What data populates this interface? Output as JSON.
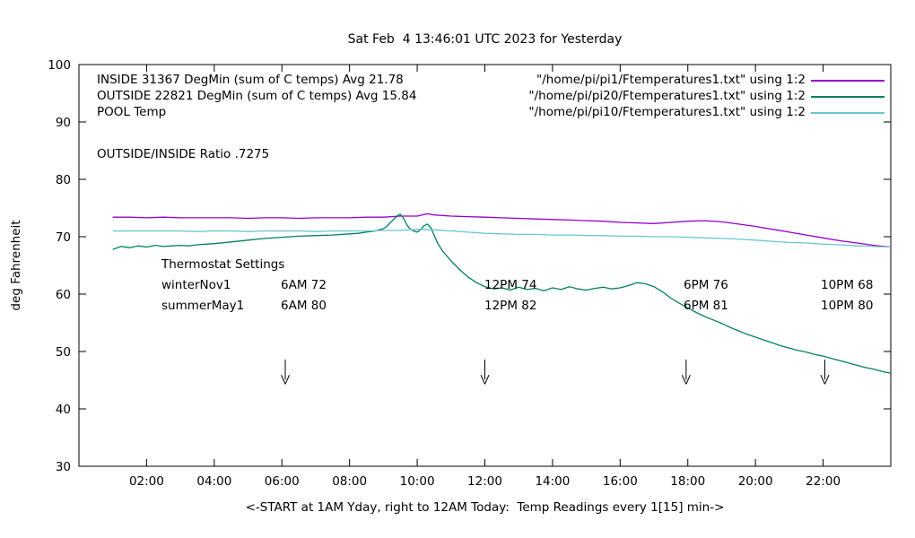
{
  "title": "Sat Feb  4 13:46:01 UTC 2023 for Yesterday",
  "axes": {
    "ylabel": "deg Fahrenheit",
    "xlabel": "<-START at 1AM Yday, right to 12AM Today:  Temp Readings every 1[15] min->",
    "xlim_hours": [
      0,
      24
    ],
    "ylim": [
      30,
      100
    ],
    "ytick_values": [
      30,
      40,
      50,
      60,
      70,
      80,
      90,
      100
    ],
    "xticks": [
      {
        "hour": 2,
        "label": "02:00"
      },
      {
        "hour": 4,
        "label": "04:00"
      },
      {
        "hour": 6,
        "label": "06:00"
      },
      {
        "hour": 8,
        "label": "08:00"
      },
      {
        "hour": 10,
        "label": "10:00"
      },
      {
        "hour": 12,
        "label": "12:00"
      },
      {
        "hour": 14,
        "label": "14:00"
      },
      {
        "hour": 16,
        "label": "16:00"
      },
      {
        "hour": 18,
        "label": "18:00"
      },
      {
        "hour": 20,
        "label": "20:00"
      },
      {
        "hour": 22,
        "label": "22:00"
      }
    ],
    "grid": false,
    "border_color": "#000000"
  },
  "legend": {
    "position": "top-inside",
    "rows": [
      {
        "label": "INSIDE 31367 DegMin (sum of C temps) Avg 21.78",
        "file": "\"/home/pi/pi1/Ftemperatures1.txt\" using 1:2"
      },
      {
        "label": "OUTSIDE 22821 DegMin (sum of C temps) Avg 15.84",
        "file": "\"/home/pi/pi20/Ftemperatures1.txt\" using 1:2"
      },
      {
        "label": "POOL Temp",
        "file": "\"/home/pi/pi10/Ftemperatures1.txt\" using 1:2"
      }
    ],
    "ratio_label": "OUTSIDE/INSIDE Ratio .7275"
  },
  "thermostat": {
    "title": "Thermostat Settings",
    "rows": [
      {
        "name": "winterNov1",
        "settings": [
          "6AM 72",
          "12PM 74",
          "6PM 76",
          "10PM 68"
        ]
      },
      {
        "name": "summerMay1",
        "settings": [
          "6AM 80",
          "12PM 82",
          "6PM 81",
          "10PM 80"
        ]
      }
    ]
  },
  "chart_data": {
    "type": "line",
    "x_unit": "hour of day (1 = 1AM yesterday, 24 = 12AM today)",
    "xlim": [
      0,
      24
    ],
    "ylim": [
      30,
      100
    ],
    "arrows_at_hours": [
      6.1,
      12.0,
      17.95,
      22.05
    ],
    "series": [
      {
        "name": "INSIDE",
        "color": "#9400d3",
        "x": [
          1,
          1.5,
          2,
          2.5,
          3,
          3.5,
          4,
          4.5,
          5,
          5.5,
          6,
          6.5,
          7,
          7.5,
          8,
          8.5,
          9,
          9.5,
          10,
          10.3,
          10.5,
          11,
          11.5,
          12,
          12.5,
          13,
          13.5,
          14,
          14.5,
          15,
          15.5,
          16,
          16.5,
          17,
          17.5,
          18,
          18.5,
          19,
          19.5,
          20,
          20.5,
          21,
          21.5,
          22,
          22.5,
          23,
          23.5,
          24
        ],
        "y": [
          73.4,
          73.4,
          73.3,
          73.4,
          73.3,
          73.3,
          73.3,
          73.3,
          73.2,
          73.3,
          73.3,
          73.2,
          73.3,
          73.3,
          73.3,
          73.4,
          73.4,
          73.6,
          73.6,
          74.0,
          73.8,
          73.6,
          73.5,
          73.4,
          73.3,
          73.2,
          73.1,
          73.0,
          72.9,
          72.8,
          72.7,
          72.5,
          72.4,
          72.3,
          72.5,
          72.7,
          72.8,
          72.6,
          72.2,
          71.8,
          71.3,
          70.8,
          70.3,
          69.8,
          69.3,
          68.9,
          68.5,
          68.2
        ]
      },
      {
        "name": "OUTSIDE",
        "color": "#008060",
        "x": [
          1,
          1.25,
          1.5,
          1.75,
          2,
          2.25,
          2.5,
          2.75,
          3,
          3.25,
          3.5,
          3.75,
          4,
          4.5,
          5,
          5.5,
          6,
          6.5,
          7,
          7.5,
          8,
          8.25,
          8.5,
          8.75,
          9,
          9.1,
          9.2,
          9.3,
          9.4,
          9.5,
          9.6,
          9.7,
          9.8,
          9.9,
          10,
          10.1,
          10.2,
          10.3,
          10.4,
          10.5,
          10.6,
          10.75,
          11,
          11.25,
          11.5,
          11.75,
          12,
          12.25,
          12.5,
          12.75,
          13,
          13.25,
          13.5,
          13.75,
          14,
          14.25,
          14.5,
          14.75,
          15,
          15.25,
          15.5,
          15.75,
          16,
          16.25,
          16.5,
          16.75,
          17,
          17.25,
          17.5,
          17.75,
          18,
          18.25,
          18.5,
          18.75,
          19,
          19.25,
          19.5,
          19.75,
          20,
          20.25,
          20.5,
          20.75,
          21,
          21.25,
          21.5,
          21.75,
          22,
          22.25,
          22.5,
          22.75,
          23,
          23.25,
          23.5,
          23.75,
          24
        ],
        "y": [
          67.8,
          68.3,
          68.1,
          68.4,
          68.2,
          68.5,
          68.3,
          68.4,
          68.5,
          68.4,
          68.6,
          68.7,
          68.8,
          69.1,
          69.4,
          69.7,
          69.9,
          70.1,
          70.2,
          70.3,
          70.5,
          70.6,
          70.8,
          71.0,
          71.4,
          71.8,
          72.4,
          73.0,
          73.6,
          73.9,
          73.2,
          72.0,
          71.3,
          71.0,
          70.8,
          71.2,
          71.9,
          72.2,
          71.6,
          70.3,
          68.9,
          67.5,
          65.8,
          64.3,
          63.0,
          62.0,
          61.3,
          60.9,
          61.1,
          60.7,
          61.2,
          60.8,
          61.0,
          60.6,
          61.1,
          60.8,
          61.3,
          60.9,
          60.7,
          61.0,
          61.2,
          60.9,
          61.1,
          61.5,
          62.0,
          61.8,
          61.3,
          60.4,
          59.3,
          58.4,
          57.6,
          56.8,
          56.1,
          55.5,
          54.9,
          54.2,
          53.6,
          53.0,
          52.5,
          52.0,
          51.5,
          51.0,
          50.6,
          50.2,
          49.9,
          49.5,
          49.2,
          48.8,
          48.4,
          48.0,
          47.6,
          47.2,
          46.9,
          46.5,
          46.2
        ]
      },
      {
        "name": "POOL",
        "color": "#6cc5d0",
        "x": [
          1,
          1.5,
          2,
          2.5,
          3,
          3.5,
          4,
          4.5,
          5,
          5.5,
          6,
          6.5,
          7,
          7.5,
          8,
          8.5,
          9,
          9.5,
          10,
          10.5,
          11,
          11.5,
          12,
          12.5,
          13,
          13.5,
          14,
          14.5,
          15,
          15.5,
          16,
          16.5,
          17,
          17.5,
          18,
          18.5,
          19,
          19.5,
          20,
          20.5,
          21,
          21.5,
          22,
          22.5,
          23,
          23.5,
          24
        ],
        "y": [
          71.0,
          71.0,
          71.0,
          71.0,
          71.0,
          70.9,
          71.0,
          71.0,
          70.9,
          71.0,
          71.0,
          71.0,
          70.9,
          71.0,
          71.0,
          71.0,
          71.1,
          71.1,
          71.3,
          71.2,
          71.0,
          70.8,
          70.6,
          70.5,
          70.4,
          70.4,
          70.3,
          70.3,
          70.2,
          70.2,
          70.1,
          70.1,
          70.0,
          70.0,
          69.9,
          69.8,
          69.7,
          69.6,
          69.4,
          69.2,
          69.0,
          68.9,
          68.7,
          68.6,
          68.4,
          68.3,
          68.2
        ]
      }
    ]
  }
}
